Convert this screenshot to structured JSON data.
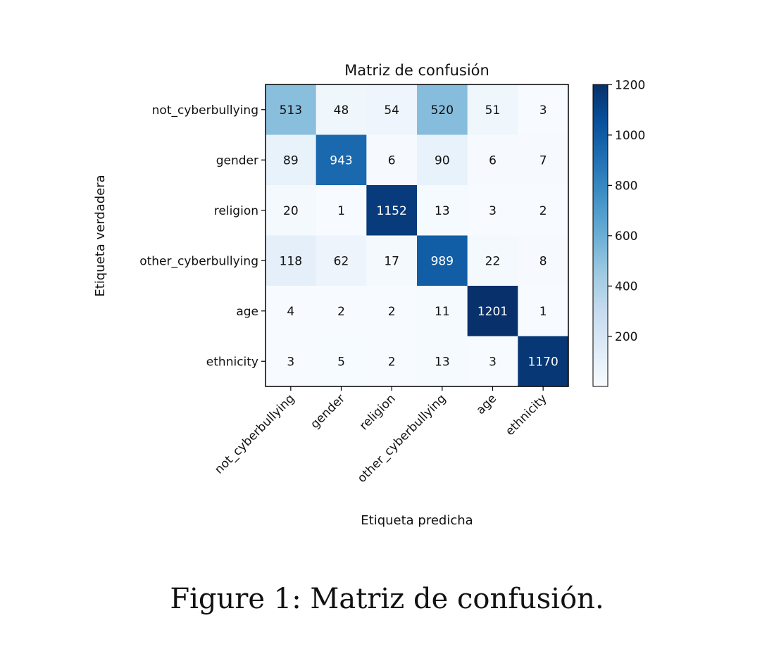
{
  "chart_data": {
    "type": "heatmap",
    "title": "Matriz de confusión",
    "xlabel": "Etiqueta predicha",
    "ylabel": "Etiqueta verdadera",
    "row_labels": [
      "not_cyberbullying",
      "gender",
      "religion",
      "other_cyberbullying",
      "age",
      "ethnicity"
    ],
    "col_labels": [
      "not_cyberbullying",
      "gender",
      "religion",
      "other_cyberbullying",
      "age",
      "ethnicity"
    ],
    "values": [
      [
        513,
        48,
        54,
        520,
        51,
        3
      ],
      [
        89,
        943,
        6,
        90,
        6,
        7
      ],
      [
        20,
        1,
        1152,
        13,
        3,
        2
      ],
      [
        118,
        62,
        17,
        989,
        22,
        8
      ],
      [
        4,
        2,
        2,
        11,
        1201,
        1
      ],
      [
        3,
        5,
        2,
        13,
        3,
        1170
      ]
    ],
    "colormap": "Blues",
    "colorbar": {
      "ticks": [
        200,
        400,
        600,
        800,
        1000,
        1200
      ],
      "range": [
        1,
        1201
      ]
    }
  },
  "caption": "Figure 1: Matriz de confusión."
}
